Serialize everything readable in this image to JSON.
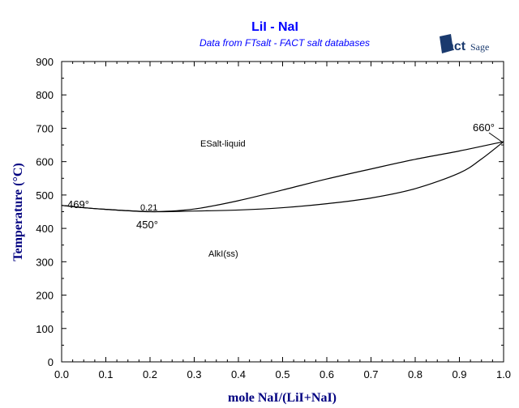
{
  "logo": {
    "text": "FactSage",
    "color": "#1a3a6e"
  },
  "chart_data": {
    "type": "line",
    "title": "LiI - NaI",
    "subtitle": "Data from FTsalt - FACT salt databases",
    "xlabel": "mole NaI/(LiI+NaI)",
    "ylabel": "Temperature (°C)",
    "xlim": [
      0,
      1
    ],
    "ylim": [
      0,
      900
    ],
    "xticks": [
      "0.0",
      "0.1",
      "0.2",
      "0.3",
      "0.4",
      "0.5",
      "0.6",
      "0.7",
      "0.8",
      "0.9",
      "1.0"
    ],
    "yticks": [
      "0",
      "100",
      "200",
      "300",
      "400",
      "500",
      "600",
      "700",
      "800",
      "900"
    ],
    "grid": false,
    "series": [
      {
        "id": "liquidus",
        "x": [
          0,
          0.05,
          0.1,
          0.15,
          0.21,
          0.3,
          0.4,
          0.5,
          0.6,
          0.7,
          0.8,
          0.9,
          1.0
        ],
        "y": [
          469,
          462,
          457,
          453,
          450,
          458,
          483,
          515,
          548,
          578,
          607,
          632,
          660
        ]
      },
      {
        "id": "solidus",
        "x": [
          0,
          0.05,
          0.1,
          0.15,
          0.21,
          0.3,
          0.4,
          0.5,
          0.6,
          0.7,
          0.8,
          0.9,
          0.95,
          1.0
        ],
        "y": [
          469,
          462,
          457,
          453,
          450,
          452,
          455,
          462,
          474,
          491,
          519,
          566,
          608,
          660
        ]
      }
    ],
    "annotations": {
      "left_mp": "469°",
      "min_x": "0.21",
      "min_t": "450°",
      "right_mp": "660°",
      "liquid_region": "ESalt-liquid",
      "solid_region": "AlkI(ss)"
    },
    "line_color": "#000000",
    "title_color": "#0000ff",
    "axis_label_color": "#000080"
  }
}
